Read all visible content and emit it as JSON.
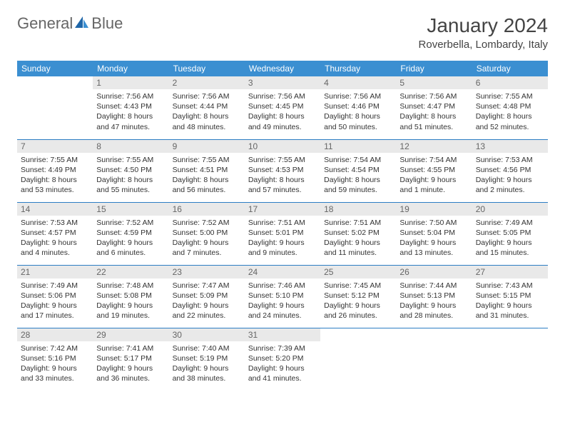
{
  "logo": {
    "text1": "General",
    "text2": "Blue"
  },
  "title": "January 2024",
  "location": "Roverbella, Lombardy, Italy",
  "colors": {
    "header_bg": "#3b8fd1",
    "header_text": "#ffffff",
    "daynum_bg": "#e9e9e9",
    "daynum_text": "#666666",
    "body_text": "#333333",
    "rule": "#2c7ec4",
    "logo_gray": "#666666",
    "logo_blue": "#2c7ec4"
  },
  "weekdays": [
    "Sunday",
    "Monday",
    "Tuesday",
    "Wednesday",
    "Thursday",
    "Friday",
    "Saturday"
  ],
  "weeks": [
    [
      {
        "blank": true
      },
      {
        "day": "1",
        "sunrise": "Sunrise: 7:56 AM",
        "sunset": "Sunset: 4:43 PM",
        "daylight": "Daylight: 8 hours and 47 minutes."
      },
      {
        "day": "2",
        "sunrise": "Sunrise: 7:56 AM",
        "sunset": "Sunset: 4:44 PM",
        "daylight": "Daylight: 8 hours and 48 minutes."
      },
      {
        "day": "3",
        "sunrise": "Sunrise: 7:56 AM",
        "sunset": "Sunset: 4:45 PM",
        "daylight": "Daylight: 8 hours and 49 minutes."
      },
      {
        "day": "4",
        "sunrise": "Sunrise: 7:56 AM",
        "sunset": "Sunset: 4:46 PM",
        "daylight": "Daylight: 8 hours and 50 minutes."
      },
      {
        "day": "5",
        "sunrise": "Sunrise: 7:56 AM",
        "sunset": "Sunset: 4:47 PM",
        "daylight": "Daylight: 8 hours and 51 minutes."
      },
      {
        "day": "6",
        "sunrise": "Sunrise: 7:55 AM",
        "sunset": "Sunset: 4:48 PM",
        "daylight": "Daylight: 8 hours and 52 minutes."
      }
    ],
    [
      {
        "day": "7",
        "sunrise": "Sunrise: 7:55 AM",
        "sunset": "Sunset: 4:49 PM",
        "daylight": "Daylight: 8 hours and 53 minutes."
      },
      {
        "day": "8",
        "sunrise": "Sunrise: 7:55 AM",
        "sunset": "Sunset: 4:50 PM",
        "daylight": "Daylight: 8 hours and 55 minutes."
      },
      {
        "day": "9",
        "sunrise": "Sunrise: 7:55 AM",
        "sunset": "Sunset: 4:51 PM",
        "daylight": "Daylight: 8 hours and 56 minutes."
      },
      {
        "day": "10",
        "sunrise": "Sunrise: 7:55 AM",
        "sunset": "Sunset: 4:53 PM",
        "daylight": "Daylight: 8 hours and 57 minutes."
      },
      {
        "day": "11",
        "sunrise": "Sunrise: 7:54 AM",
        "sunset": "Sunset: 4:54 PM",
        "daylight": "Daylight: 8 hours and 59 minutes."
      },
      {
        "day": "12",
        "sunrise": "Sunrise: 7:54 AM",
        "sunset": "Sunset: 4:55 PM",
        "daylight": "Daylight: 9 hours and 1 minute."
      },
      {
        "day": "13",
        "sunrise": "Sunrise: 7:53 AM",
        "sunset": "Sunset: 4:56 PM",
        "daylight": "Daylight: 9 hours and 2 minutes."
      }
    ],
    [
      {
        "day": "14",
        "sunrise": "Sunrise: 7:53 AM",
        "sunset": "Sunset: 4:57 PM",
        "daylight": "Daylight: 9 hours and 4 minutes."
      },
      {
        "day": "15",
        "sunrise": "Sunrise: 7:52 AM",
        "sunset": "Sunset: 4:59 PM",
        "daylight": "Daylight: 9 hours and 6 minutes."
      },
      {
        "day": "16",
        "sunrise": "Sunrise: 7:52 AM",
        "sunset": "Sunset: 5:00 PM",
        "daylight": "Daylight: 9 hours and 7 minutes."
      },
      {
        "day": "17",
        "sunrise": "Sunrise: 7:51 AM",
        "sunset": "Sunset: 5:01 PM",
        "daylight": "Daylight: 9 hours and 9 minutes."
      },
      {
        "day": "18",
        "sunrise": "Sunrise: 7:51 AM",
        "sunset": "Sunset: 5:02 PM",
        "daylight": "Daylight: 9 hours and 11 minutes."
      },
      {
        "day": "19",
        "sunrise": "Sunrise: 7:50 AM",
        "sunset": "Sunset: 5:04 PM",
        "daylight": "Daylight: 9 hours and 13 minutes."
      },
      {
        "day": "20",
        "sunrise": "Sunrise: 7:49 AM",
        "sunset": "Sunset: 5:05 PM",
        "daylight": "Daylight: 9 hours and 15 minutes."
      }
    ],
    [
      {
        "day": "21",
        "sunrise": "Sunrise: 7:49 AM",
        "sunset": "Sunset: 5:06 PM",
        "daylight": "Daylight: 9 hours and 17 minutes."
      },
      {
        "day": "22",
        "sunrise": "Sunrise: 7:48 AM",
        "sunset": "Sunset: 5:08 PM",
        "daylight": "Daylight: 9 hours and 19 minutes."
      },
      {
        "day": "23",
        "sunrise": "Sunrise: 7:47 AM",
        "sunset": "Sunset: 5:09 PM",
        "daylight": "Daylight: 9 hours and 22 minutes."
      },
      {
        "day": "24",
        "sunrise": "Sunrise: 7:46 AM",
        "sunset": "Sunset: 5:10 PM",
        "daylight": "Daylight: 9 hours and 24 minutes."
      },
      {
        "day": "25",
        "sunrise": "Sunrise: 7:45 AM",
        "sunset": "Sunset: 5:12 PM",
        "daylight": "Daylight: 9 hours and 26 minutes."
      },
      {
        "day": "26",
        "sunrise": "Sunrise: 7:44 AM",
        "sunset": "Sunset: 5:13 PM",
        "daylight": "Daylight: 9 hours and 28 minutes."
      },
      {
        "day": "27",
        "sunrise": "Sunrise: 7:43 AM",
        "sunset": "Sunset: 5:15 PM",
        "daylight": "Daylight: 9 hours and 31 minutes."
      }
    ],
    [
      {
        "day": "28",
        "sunrise": "Sunrise: 7:42 AM",
        "sunset": "Sunset: 5:16 PM",
        "daylight": "Daylight: 9 hours and 33 minutes."
      },
      {
        "day": "29",
        "sunrise": "Sunrise: 7:41 AM",
        "sunset": "Sunset: 5:17 PM",
        "daylight": "Daylight: 9 hours and 36 minutes."
      },
      {
        "day": "30",
        "sunrise": "Sunrise: 7:40 AM",
        "sunset": "Sunset: 5:19 PM",
        "daylight": "Daylight: 9 hours and 38 minutes."
      },
      {
        "day": "31",
        "sunrise": "Sunrise: 7:39 AM",
        "sunset": "Sunset: 5:20 PM",
        "daylight": "Daylight: 9 hours and 41 minutes."
      },
      {
        "blank": true
      },
      {
        "blank": true
      },
      {
        "blank": true
      }
    ]
  ]
}
